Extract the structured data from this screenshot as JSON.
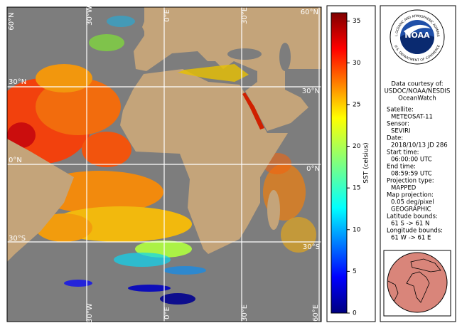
{
  "map": {
    "top_labels": [
      "60°N",
      "30°W",
      "0°E",
      "30°E",
      "60°N"
    ],
    "bottom_labels": [
      "30°W",
      "0°E",
      "30°E",
      "60°E"
    ],
    "left_labels": [
      "30°N",
      "0°N",
      "30°S"
    ],
    "right_labels": [
      "30°N",
      "0°N",
      "30°S"
    ]
  },
  "colorbar": {
    "label": "SST (celsius)",
    "range": [
      0,
      36
    ],
    "ticks": [
      0,
      5,
      10,
      15,
      20,
      25,
      30,
      35
    ]
  },
  "logo": {
    "center": "NOAA",
    "ring_top": "NATIONAL OCEANIC AND ATMOSPHERIC ADMINISTRATION",
    "ring_bottom": "U.S. DEPARTMENT OF COMMERCE"
  },
  "info": {
    "credit": [
      "Data courtesy of:",
      "USDOC/NOAA/NESDIS",
      "OceanWatch"
    ],
    "fields": [
      {
        "label": "Satellite:",
        "values": [
          "METEOSAT-11"
        ]
      },
      {
        "label": "Sensor:",
        "values": [
          "SEVIRI"
        ]
      },
      {
        "label": "Date:",
        "values": [
          "2018/10/13 JD 286"
        ]
      },
      {
        "label": "Start time:",
        "values": [
          "06:00:00 UTC"
        ]
      },
      {
        "label": "End time:",
        "values": [
          "08:59:59 UTC"
        ]
      },
      {
        "label": "Projection type:",
        "values": [
          "MAPPED"
        ]
      },
      {
        "label": "Map projection:",
        "values": [
          "0.05 deg/pixel",
          "GEOGRAPHIC"
        ]
      },
      {
        "label": "Latitude bounds:",
        "values": [
          "61 S -> 61 N"
        ]
      },
      {
        "label": "Longitude bounds:",
        "values": [
          "61 W -> 61 E"
        ]
      }
    ]
  }
}
